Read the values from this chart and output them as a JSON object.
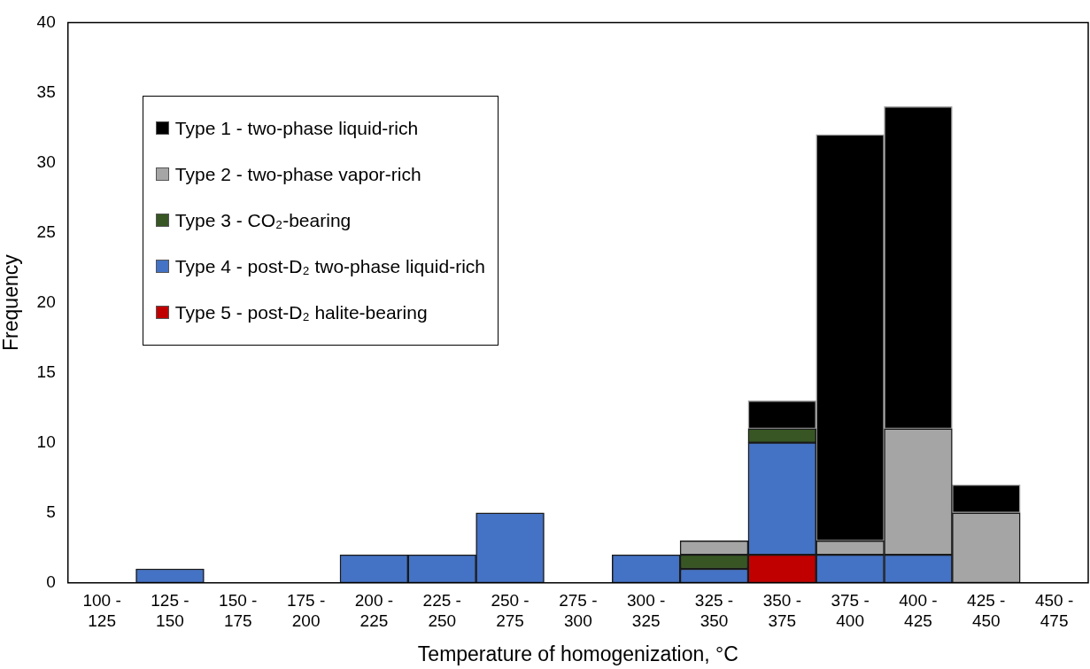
{
  "chart_data": {
    "type": "bar",
    "stacked": true,
    "xlabel": "Temperature of homogenization, °C",
    "ylabel": "Frequency",
    "categories": [
      "100 - 125",
      "125 - 150",
      "150 - 175",
      "175 - 200",
      "200 - 225",
      "225 - 250",
      "250 - 275",
      "275 - 300",
      "300 - 325",
      "325 - 350",
      "350 - 375",
      "375 - 400",
      "400 - 425",
      "425 - 450",
      "450 - 475"
    ],
    "series": [
      {
        "name": "Type 5 - post-D₂ halite-bearing",
        "color": "#c00000",
        "values": [
          0,
          0,
          0,
          0,
          0,
          0,
          0,
          0,
          0,
          0,
          2,
          0,
          0,
          0,
          0
        ]
      },
      {
        "name": "Type 4 - post-D₂ two-phase liquid-rich",
        "color": "#4472c4",
        "values": [
          0,
          1,
          0,
          0,
          2,
          2,
          5,
          0,
          2,
          1,
          8,
          2,
          2,
          0,
          0
        ]
      },
      {
        "name": "Type 3 - CO₂-bearing",
        "color": "#375623",
        "values": [
          0,
          0,
          0,
          0,
          0,
          0,
          0,
          0,
          0,
          1,
          1,
          0,
          0,
          0,
          0
        ]
      },
      {
        "name": "Type 2 - two-phase vapor-rich",
        "color": "#a5a5a5",
        "values": [
          0,
          0,
          0,
          0,
          0,
          0,
          0,
          0,
          0,
          1,
          0,
          1,
          9,
          5,
          0
        ]
      },
      {
        "name": "Type 1 - two-phase liquid-rich",
        "color": "#000000",
        "values": [
          0,
          0,
          0,
          0,
          0,
          0,
          0,
          0,
          0,
          0,
          2,
          29,
          23,
          2,
          0
        ]
      }
    ],
    "ylim": [
      0,
      40
    ],
    "yticks": [
      0,
      5,
      10,
      15,
      20,
      25,
      30,
      35,
      40
    ],
    "grid": false,
    "legend": "top left"
  }
}
